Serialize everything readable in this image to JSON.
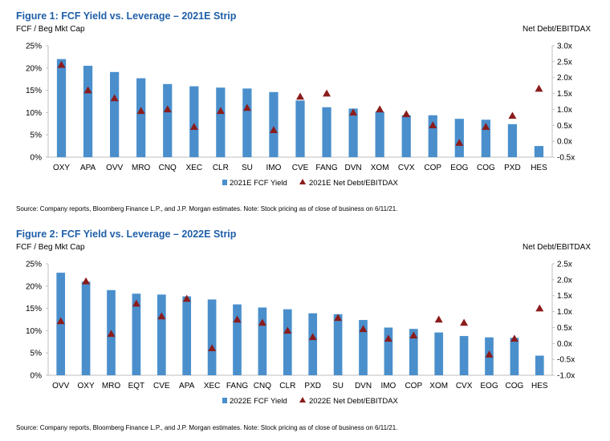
{
  "colors": {
    "bar": "#4a8fcc",
    "marker": "#8b1c1c",
    "title": "#1f5fa8",
    "axis": "#bfbfbf"
  },
  "chart_data": [
    {
      "type": "bar",
      "title": "Figure 1: FCF Yield vs. Leverage – 2021E Strip",
      "ylabel": "FCF / Beg Mkt Cap",
      "y2label": "Net Debt/EBITDAX",
      "categories": [
        "OXY",
        "APA",
        "OVV",
        "MRO",
        "CNQ",
        "XEC",
        "CLR",
        "SU",
        "IMO",
        "CVE",
        "FANG",
        "DVN",
        "XOM",
        "CVX",
        "COP",
        "EOG",
        "COG",
        "PXD",
        "HES"
      ],
      "series": [
        {
          "name": "2021E FCF Yield",
          "kind": "bar",
          "axis": "left",
          "values": [
            22.0,
            20.5,
            19.1,
            17.7,
            16.4,
            15.9,
            15.6,
            15.4,
            14.6,
            12.7,
            11.2,
            10.9,
            10.2,
            9.4,
            9.4,
            8.6,
            8.4,
            7.4,
            2.5
          ]
        },
        {
          "name": "2021E Net Debt/EBITDAX",
          "kind": "marker",
          "axis": "right",
          "values": [
            2.4,
            1.6,
            1.35,
            0.95,
            1.0,
            0.45,
            0.95,
            1.05,
            0.35,
            1.4,
            1.5,
            0.9,
            1.0,
            0.85,
            0.5,
            -0.05,
            0.45,
            0.8,
            1.65
          ]
        }
      ],
      "ylim": [
        0,
        25
      ],
      "y2lim": [
        -0.5,
        3.0
      ],
      "yticks": [
        "0%",
        "5%",
        "10%",
        "15%",
        "20%",
        "25%"
      ],
      "y2ticks": [
        "-0.5x",
        "0.0x",
        "0.5x",
        "1.0x",
        "1.5x",
        "2.0x",
        "2.5x",
        "3.0x"
      ],
      "legend": "bottom",
      "source": "Source: Company reports, Bloomberg Finance L.P., and J.P. Morgan estimates. Note: Stock pricing as of close of business on 6/11/21."
    },
    {
      "type": "bar",
      "title": "Figure 2: FCF Yield vs. Leverage – 2022E Strip",
      "ylabel": "FCF / Beg Mkt Cap",
      "y2label": "Net Debt/EBITDAX",
      "categories": [
        "OVV",
        "OXY",
        "MRO",
        "EQT",
        "CVE",
        "APA",
        "XEC",
        "FANG",
        "CNQ",
        "CLR",
        "PXD",
        "SU",
        "DVN",
        "IMO",
        "COP",
        "XOM",
        "CVX",
        "EOG",
        "COG",
        "HES"
      ],
      "series": [
        {
          "name": "2022E FCF Yield",
          "kind": "bar",
          "axis": "left",
          "values": [
            23.0,
            21.0,
            19.1,
            18.3,
            18.1,
            17.7,
            17.0,
            15.9,
            15.2,
            14.8,
            13.9,
            13.7,
            12.4,
            10.7,
            10.4,
            9.6,
            8.8,
            8.5,
            8.4,
            4.4
          ]
        },
        {
          "name": "2022E Net Debt/EBITDAX",
          "kind": "marker",
          "axis": "right",
          "values": [
            0.7,
            1.95,
            0.3,
            1.25,
            0.85,
            1.4,
            -0.15,
            0.75,
            0.65,
            0.4,
            0.2,
            0.8,
            0.45,
            0.15,
            0.25,
            0.75,
            0.65,
            -0.35,
            0.15,
            1.1
          ]
        }
      ],
      "ylim": [
        0,
        25
      ],
      "y2lim": [
        -1.0,
        2.5
      ],
      "yticks": [
        "0%",
        "5%",
        "10%",
        "15%",
        "20%",
        "25%"
      ],
      "y2ticks": [
        "-1.0x",
        "-0.5x",
        "0.0x",
        "0.5x",
        "1.0x",
        "1.5x",
        "2.0x",
        "2.5x"
      ],
      "legend": "bottom",
      "source": "Source: Company reports, Bloomberg Finance L.P., and J.P. Morgan estimates. Note: Stock pricing as of close of business on 6/11/21."
    }
  ]
}
